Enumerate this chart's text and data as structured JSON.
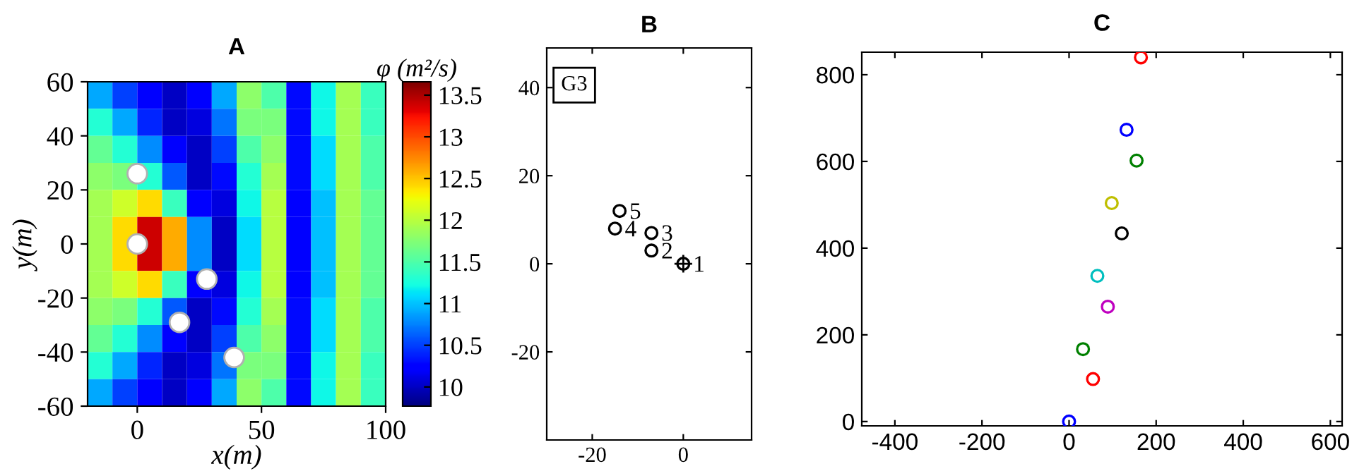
{
  "chart_data": [
    {
      "type": "heatmap",
      "title": "A",
      "xlabel": "x(m)",
      "ylabel": "y(m)",
      "clabel": "φ (m²/s)",
      "xlim": [
        -20,
        100
      ],
      "ylim": [
        -60,
        60
      ],
      "xticks": [
        0,
        50,
        100
      ],
      "yticks": [
        -60,
        -40,
        -20,
        0,
        20,
        40,
        60
      ],
      "clim": [
        9.77,
        13.66
      ],
      "cticks": [
        10,
        10.5,
        11,
        11.5,
        12,
        12.5,
        13,
        13.5
      ],
      "grid": false,
      "cells": [
        [
          10.9,
          10.5,
          10.2,
          10.0,
          10.2,
          10.9,
          11.8,
          11.5,
          10.3,
          11.2,
          11.9,
          11.4
        ],
        [
          11.3,
          10.9,
          10.4,
          10.0,
          10.1,
          10.7,
          11.7,
          11.7,
          10.3,
          11.2,
          11.9,
          11.4
        ],
        [
          11.6,
          11.3,
          10.8,
          10.2,
          10.0,
          10.5,
          11.5,
          11.8,
          10.3,
          11.1,
          11.9,
          11.5
        ],
        [
          11.8,
          11.7,
          11.3,
          10.6,
          10.0,
          10.3,
          11.3,
          11.9,
          10.3,
          11.1,
          11.9,
          11.5
        ],
        [
          11.9,
          12.1,
          12.4,
          11.4,
          10.2,
          10.1,
          11.2,
          12.0,
          10.2,
          11.0,
          11.9,
          11.6
        ],
        [
          11.9,
          12.4,
          13.4,
          12.6,
          10.8,
          10.0,
          11.1,
          12.0,
          10.2,
          11.0,
          11.9,
          11.6
        ],
        [
          11.9,
          12.4,
          13.4,
          12.6,
          10.8,
          10.0,
          11.1,
          12.0,
          10.2,
          11.0,
          11.9,
          11.6
        ],
        [
          11.9,
          12.1,
          12.4,
          11.4,
          10.2,
          10.1,
          11.2,
          12.0,
          10.2,
          11.0,
          11.9,
          11.6
        ],
        [
          11.8,
          11.7,
          11.3,
          10.6,
          10.0,
          10.3,
          11.3,
          11.9,
          10.3,
          11.1,
          11.9,
          11.5
        ],
        [
          11.6,
          11.3,
          10.8,
          10.2,
          10.0,
          10.5,
          11.5,
          11.8,
          10.3,
          11.1,
          11.9,
          11.5
        ],
        [
          11.3,
          10.9,
          10.4,
          10.0,
          10.1,
          10.7,
          11.7,
          11.7,
          10.3,
          11.2,
          11.9,
          11.4
        ],
        [
          10.9,
          10.5,
          10.2,
          10.0,
          10.2,
          10.9,
          11.8,
          11.5,
          10.3,
          11.2,
          11.9,
          11.4
        ]
      ],
      "series": [
        {
          "type": "scatter",
          "marker": "circle",
          "color": "#ffffff",
          "x": [
            0,
            0,
            28,
            17,
            39
          ],
          "values": [
            26,
            0,
            -13,
            -29,
            -42
          ]
        }
      ]
    },
    {
      "type": "scatter",
      "title": "B",
      "xlim": [
        -30,
        15
      ],
      "ylim": [
        -40,
        49
      ],
      "xticks": [
        -20,
        0
      ],
      "yticks": [
        -20,
        0,
        20,
        40
      ],
      "grid": false,
      "annotations": [
        "G3",
        {
          "text": "1",
          "x": 0,
          "y": 0
        },
        {
          "text": "2",
          "x": -7,
          "y": 3
        },
        {
          "text": "3",
          "x": -7,
          "y": 7
        },
        {
          "text": "4",
          "x": -15,
          "y": 8
        },
        {
          "text": "5",
          "x": -14,
          "y": 12
        }
      ],
      "series": [
        {
          "marker": "cross",
          "color": "#000000",
          "x": [
            0
          ],
          "values": [
            0
          ]
        },
        {
          "marker": "circle",
          "color": "#000000",
          "x": [
            0,
            -7,
            -7,
            -15,
            -14
          ],
          "values": [
            0,
            3,
            7,
            8,
            12
          ]
        }
      ]
    },
    {
      "type": "scatter",
      "title": "C",
      "xlim": [
        -476,
        627
      ],
      "ylim": [
        -10,
        852
      ],
      "xticks": [
        -400,
        -200,
        0,
        200,
        400,
        600
      ],
      "yticks": [
        0,
        200,
        400,
        600,
        800
      ],
      "grid": false,
      "marker": "circle",
      "x": [
        0,
        55,
        32,
        89,
        65,
        121,
        98,
        155,
        132,
        165
      ],
      "values": [
        0,
        98,
        167,
        265,
        336,
        434,
        504,
        602,
        673,
        840
      ],
      "colors": [
        "#0000ff",
        "#ff0000",
        "#008000",
        "#bf00bf",
        "#00bfbf",
        "#000000",
        "#bfbf00",
        "#008000",
        "#0000ff",
        "#ff0000"
      ]
    }
  ]
}
